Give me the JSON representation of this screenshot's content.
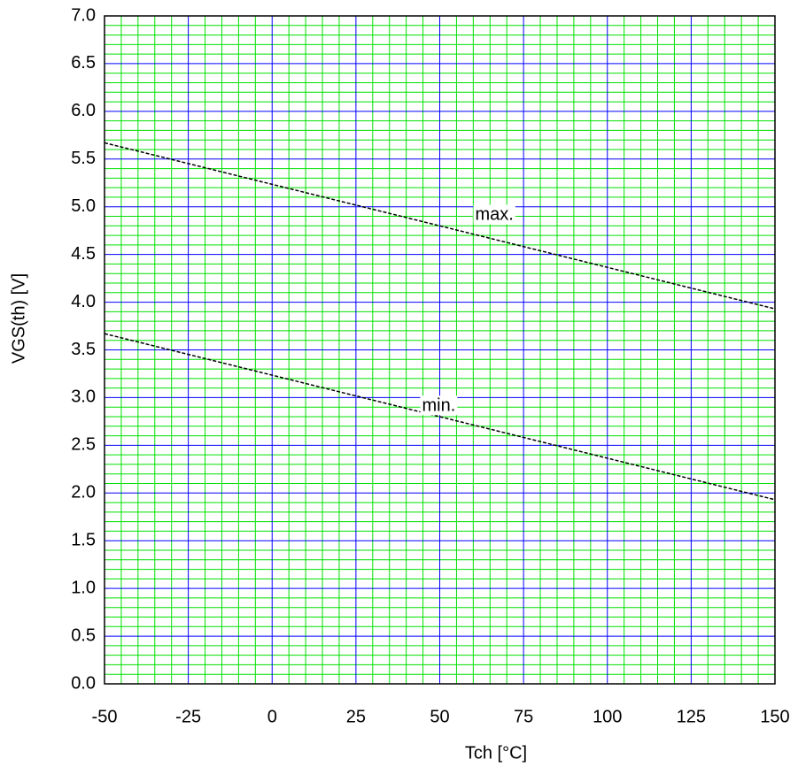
{
  "chart_data": {
    "type": "line",
    "xlabel": "Tch [°C]",
    "ylabel": "VGS(th) [V]",
    "x": [
      -50,
      150
    ],
    "series": [
      {
        "name": "max.",
        "color": "#000000",
        "values": [
          5.67,
          3.93
        ]
      },
      {
        "name": "min.",
        "color": "#000000",
        "values": [
          3.67,
          1.93
        ]
      }
    ],
    "xlim": [
      -50,
      150
    ],
    "xticks": [
      -50,
      -25,
      0,
      25,
      50,
      75,
      100,
      125,
      150
    ],
    "ylim": [
      0,
      7
    ],
    "yticks": [
      {
        "value": 0,
        "label": "0.0"
      },
      0.5,
      {
        "value": 1,
        "label": "1.0"
      },
      1.5,
      {
        "value": 2,
        "label": "2.0"
      },
      2.5,
      {
        "value": 3,
        "label": "3.0"
      },
      3.5,
      {
        "value": 4,
        "label": "4.0"
      },
      4.5,
      {
        "value": 5,
        "label": "5.0"
      },
      5.5,
      {
        "value": 6,
        "label": "6.0"
      },
      6.5,
      {
        "value": 7,
        "label": "7.0"
      }
    ],
    "grid": true,
    "major_grid_color": "#0000ff",
    "minor_grid_color": "#00e000"
  }
}
